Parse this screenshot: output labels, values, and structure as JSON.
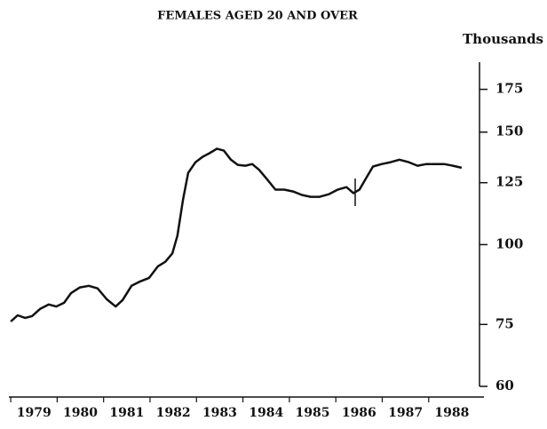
{
  "chart_data": {
    "type": "line",
    "title": "FEMALES AGED 20 AND OVER",
    "y_axis_label": "Thousands",
    "x": [
      1979.0,
      1979.15,
      1979.31,
      1979.46,
      1979.63,
      1979.82,
      1979.98,
      1980.15,
      1980.3,
      1980.49,
      1980.68,
      1980.87,
      1981.07,
      1981.26,
      1981.41,
      1981.6,
      1981.79,
      1981.98,
      1982.17,
      1982.33,
      1982.48,
      1982.59,
      1982.71,
      1982.82,
      1982.98,
      1983.13,
      1983.28,
      1983.44,
      1983.59,
      1983.74,
      1983.89,
      1984.05,
      1984.2,
      1984.35,
      1984.51,
      1984.7,
      1984.89,
      1985.08,
      1985.27,
      1985.46,
      1985.65,
      1985.85,
      1986.04,
      1986.23,
      1986.38,
      1986.51,
      1986.65,
      1986.8,
      1986.99,
      1987.18,
      1987.37,
      1987.57,
      1987.76,
      1987.95,
      1988.14,
      1988.33,
      1988.52,
      1988.71
    ],
    "series": [
      {
        "color": "#111111",
        "values": [
          75.8,
          77.5,
          76.8,
          77.3,
          79.3,
          80.6,
          80.0,
          81.1,
          84.0,
          85.7,
          86.2,
          85.4,
          82.1,
          80.0,
          81.9,
          86.2,
          87.6,
          88.7,
          92.5,
          94.0,
          96.9,
          103.3,
          117.6,
          129.5,
          134.6,
          137.2,
          139.0,
          141.3,
          140.3,
          135.8,
          133.3,
          132.9,
          133.7,
          130.9,
          126.8,
          121.9,
          121.9,
          121.1,
          119.6,
          118.8,
          118.8,
          119.9,
          121.9,
          123.0,
          120.4,
          121.9,
          127.0,
          132.5,
          133.7,
          134.6,
          135.8,
          134.6,
          132.9,
          133.7,
          133.7,
          133.7,
          132.9,
          131.9
        ]
      }
    ],
    "xlim": [
      1978.96,
      1989.19
    ],
    "xticks": [
      1979,
      1980,
      1981,
      1982,
      1983,
      1984,
      1985,
      1986,
      1987,
      1988
    ],
    "ylim": [
      60,
      193
    ],
    "yticks": [
      60,
      75,
      100,
      125,
      150,
      175
    ],
    "y_scale": "log",
    "grid": false
  }
}
